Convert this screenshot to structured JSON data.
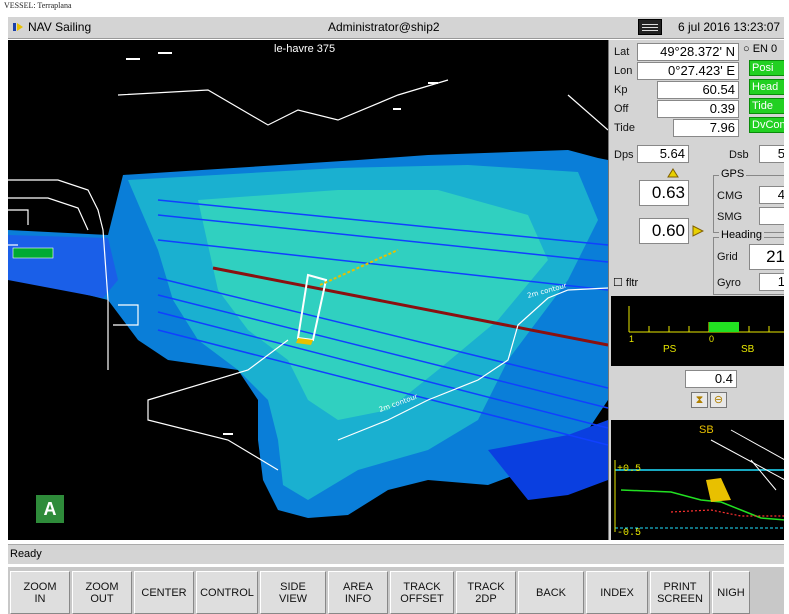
{
  "caption": "VESSEL: Terraplana",
  "titlebar": {
    "app_name": "NAV Sailing",
    "user": "Administrator@ship2",
    "datetime": "6 jul 2016  13:23:07"
  },
  "map": {
    "location_label": "le-havre  375",
    "badge": "A",
    "contour_label": "2m contour"
  },
  "position": {
    "lat_label": "Lat",
    "lat_value": "49°28.372' N",
    "lon_label": "Lon",
    "lon_value": "0°27.423' E",
    "kp_label": "Kp",
    "kp_value": "60.54",
    "off_label": "Off",
    "off_value": "0.39",
    "tide_label": "Tide",
    "tide_value": "7.96",
    "radio_label": "EN 0"
  },
  "status_buttons": [
    "Posi",
    "Head",
    "Tide",
    "DvCon"
  ],
  "depths": {
    "dps_label": "Dps",
    "dps_value": "5.64",
    "dsb_label": "Dsb",
    "dsb_value": "5"
  },
  "offsets": {
    "upper": "0.63",
    "lower": "0.60",
    "filter_label": "fltr"
  },
  "gps": {
    "title": "GPS",
    "cmg_label": "CMG",
    "cmg_value": "4",
    "smg_label": "SMG",
    "smg_value": ""
  },
  "heading": {
    "title": "Heading",
    "grid_label": "Grid",
    "grid_value": "21",
    "gyro_label": "Gyro",
    "gyro_value": "1"
  },
  "scale": {
    "ps_label": "PS",
    "sb_label": "SB",
    "left_tick": "1",
    "center_tick": "0"
  },
  "zoom_value": "0.4",
  "sideview": {
    "sb_label": "SB",
    "top_tick": "+0.5",
    "bottom_tick": "-0.5"
  },
  "statusbar": {
    "text": "Ready"
  },
  "buttons": [
    {
      "label": "ZOOM\nIN",
      "name": "zoom-in-button"
    },
    {
      "label": "ZOOM\nOUT",
      "name": "zoom-out-button"
    },
    {
      "label": "CENTER",
      "name": "center-button"
    },
    {
      "label": "CONTROL",
      "name": "control-button"
    },
    {
      "label": "SIDE\nVIEW",
      "name": "side-view-button"
    },
    {
      "label": "AREA\nINFO",
      "name": "area-info-button"
    },
    {
      "label": "TRACK\nOFFSET",
      "name": "track-offset-button"
    },
    {
      "label": "TRACK\n2DP",
      "name": "track-2dp-button"
    },
    {
      "label": "BACK",
      "name": "back-button"
    },
    {
      "label": "INDEX",
      "name": "index-button"
    },
    {
      "label": "PRINT\nSCREEN",
      "name": "print-screen-button"
    },
    {
      "label": "NIGH",
      "name": "night-button"
    }
  ]
}
